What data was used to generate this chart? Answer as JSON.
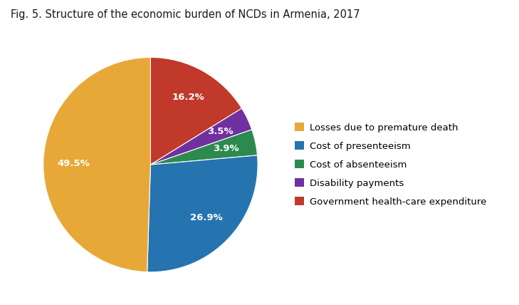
{
  "title": "Fig. 5. Structure of the economic burden of NCDs in Armenia, 2017",
  "slices": [
    {
      "label": "Losses due to premature death",
      "value": 49.5,
      "color": "#E8A838"
    },
    {
      "label": "Cost of presenteeism",
      "value": 26.9,
      "color": "#2574B0"
    },
    {
      "label": "Cost of absenteeism",
      "value": 3.9,
      "color": "#2D8A4E"
    },
    {
      "label": "Disability payments",
      "value": 3.5,
      "color": "#7030A0"
    },
    {
      "label": "Government health-care expenditure",
      "value": 16.2,
      "color": "#C0392B"
    }
  ],
  "plot_order": [
    "Government health-care expenditure",
    "Disability payments",
    "Cost of absenteeism",
    "Cost of presenteeism",
    "Losses due to premature death"
  ],
  "legend_order": [
    "Losses due to premature death",
    "Cost of presenteeism",
    "Cost of absenteeism",
    "Disability payments",
    "Government health-care expenditure"
  ],
  "startangle": 90,
  "counterclock": false,
  "background_color": "#ffffff",
  "title_fontsize": 10.5,
  "legend_fontsize": 9.5,
  "pct_fontsize": 9.5,
  "pctdistance": 0.72
}
